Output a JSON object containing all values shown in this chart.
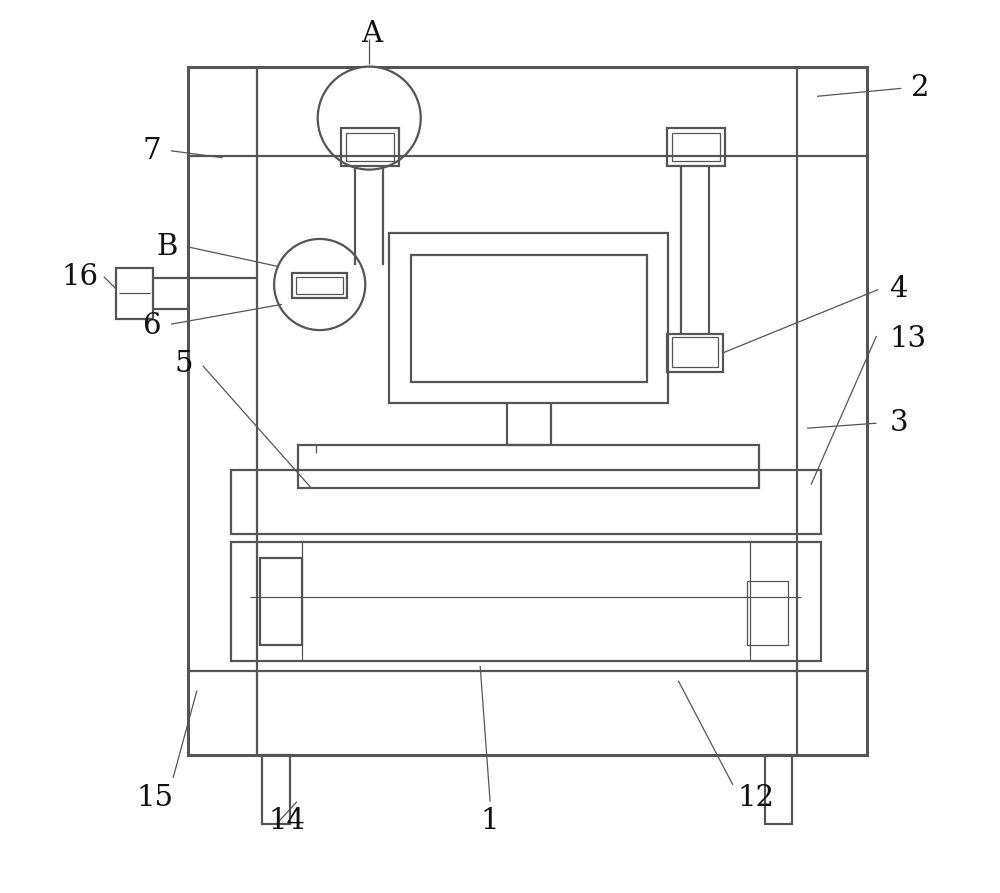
{
  "bg": "#ffffff",
  "lc": "#555555",
  "lw": 1.6,
  "tlw": 0.9,
  "fig_w": 10.0,
  "fig_h": 8.93,
  "dpi": 100
}
